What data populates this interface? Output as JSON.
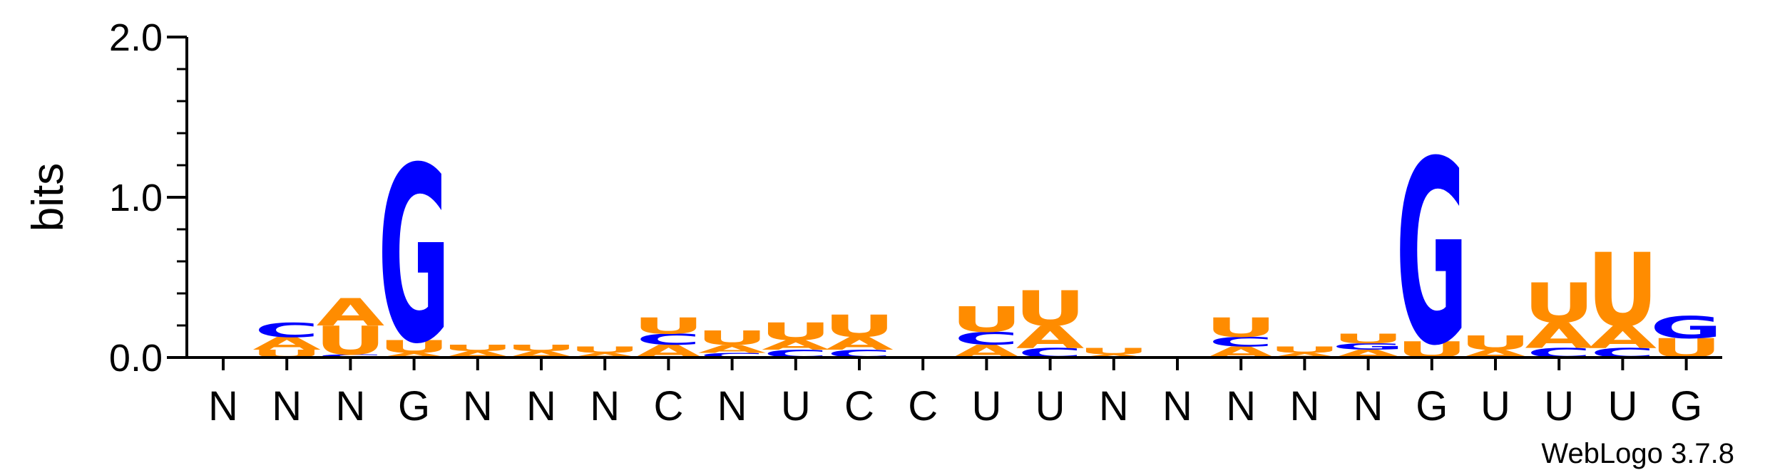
{
  "chart_data": {
    "type": "sequence-logo",
    "ylabel": "bits",
    "ylim": [
      0,
      2.0
    ],
    "yticks": [
      "0.0",
      "1.0",
      "2.0"
    ],
    "credit": "WebLogo 3.7.8",
    "colors": {
      "A": "#ff8c00",
      "U": "#ff8c00",
      "C": "#0000ff",
      "G": "#0000ff"
    },
    "positions": [
      {
        "label": "N",
        "stack": []
      },
      {
        "label": "N",
        "stack": [
          {
            "base": "U",
            "bits": 0.05
          },
          {
            "base": "A",
            "bits": 0.08
          },
          {
            "base": "C",
            "bits": 0.09
          }
        ]
      },
      {
        "label": "N",
        "stack": [
          {
            "base": "C",
            "bits": 0.02
          },
          {
            "base": "U",
            "bits": 0.18
          },
          {
            "base": "A",
            "bits": 0.17
          }
        ]
      },
      {
        "label": "G",
        "stack": [
          {
            "base": "A",
            "bits": 0.03
          },
          {
            "base": "U",
            "bits": 0.08
          },
          {
            "base": "G",
            "bits": 1.1
          }
        ]
      },
      {
        "label": "N",
        "stack": [
          {
            "base": "A",
            "bits": 0.04
          },
          {
            "base": "U",
            "bits": 0.04
          }
        ]
      },
      {
        "label": "N",
        "stack": [
          {
            "base": "A",
            "bits": 0.04
          },
          {
            "base": "U",
            "bits": 0.04
          }
        ]
      },
      {
        "label": "N",
        "stack": [
          {
            "base": "A",
            "bits": 0.03
          },
          {
            "base": "U",
            "bits": 0.04
          }
        ]
      },
      {
        "label": "C",
        "stack": [
          {
            "base": "A",
            "bits": 0.08
          },
          {
            "base": "C",
            "bits": 0.07
          },
          {
            "base": "U",
            "bits": 0.1
          }
        ]
      },
      {
        "label": "N",
        "stack": [
          {
            "base": "C",
            "bits": 0.03
          },
          {
            "base": "A",
            "bits": 0.05
          },
          {
            "base": "U",
            "bits": 0.09
          }
        ]
      },
      {
        "label": "U",
        "stack": [
          {
            "base": "C",
            "bits": 0.05
          },
          {
            "base": "A",
            "bits": 0.06
          },
          {
            "base": "U",
            "bits": 0.11
          }
        ]
      },
      {
        "label": "C",
        "stack": [
          {
            "base": "C",
            "bits": 0.05
          },
          {
            "base": "A",
            "bits": 0.08
          },
          {
            "base": "U",
            "bits": 0.14
          }
        ]
      },
      {
        "label": "C",
        "stack": []
      },
      {
        "label": "U",
        "stack": [
          {
            "base": "A",
            "bits": 0.08
          },
          {
            "base": "C",
            "bits": 0.08
          },
          {
            "base": "U",
            "bits": 0.16
          }
        ]
      },
      {
        "label": "U",
        "stack": [
          {
            "base": "C",
            "bits": 0.06
          },
          {
            "base": "A",
            "bits": 0.14
          },
          {
            "base": "U",
            "bits": 0.22
          }
        ]
      },
      {
        "label": "N",
        "stack": [
          {
            "base": "A",
            "bits": 0.02
          },
          {
            "base": "U",
            "bits": 0.04
          }
        ]
      },
      {
        "label": "N",
        "stack": []
      },
      {
        "label": "N",
        "stack": [
          {
            "base": "A",
            "bits": 0.07
          },
          {
            "base": "C",
            "bits": 0.06
          },
          {
            "base": "U",
            "bits": 0.12
          }
        ]
      },
      {
        "label": "N",
        "stack": [
          {
            "base": "A",
            "bits": 0.03
          },
          {
            "base": "U",
            "bits": 0.04
          }
        ]
      },
      {
        "label": "N",
        "stack": [
          {
            "base": "A",
            "bits": 0.05
          },
          {
            "base": "G",
            "bits": 0.04
          },
          {
            "base": "U",
            "bits": 0.06
          }
        ]
      },
      {
        "label": "G",
        "stack": [
          {
            "base": "U",
            "bits": 0.1
          },
          {
            "base": "G",
            "bits": 1.15
          }
        ]
      },
      {
        "label": "U",
        "stack": [
          {
            "base": "A",
            "bits": 0.05
          },
          {
            "base": "U",
            "bits": 0.09
          }
        ]
      },
      {
        "label": "U",
        "stack": [
          {
            "base": "C",
            "bits": 0.06
          },
          {
            "base": "A",
            "bits": 0.16
          },
          {
            "base": "U",
            "bits": 0.25
          }
        ]
      },
      {
        "label": "U",
        "stack": [
          {
            "base": "C",
            "bits": 0.06
          },
          {
            "base": "A",
            "bits": 0.14
          },
          {
            "base": "U",
            "bits": 0.46
          }
        ]
      },
      {
        "label": "G",
        "stack": [
          {
            "base": "U",
            "bits": 0.12
          },
          {
            "base": "G",
            "bits": 0.14
          }
        ]
      }
    ]
  }
}
